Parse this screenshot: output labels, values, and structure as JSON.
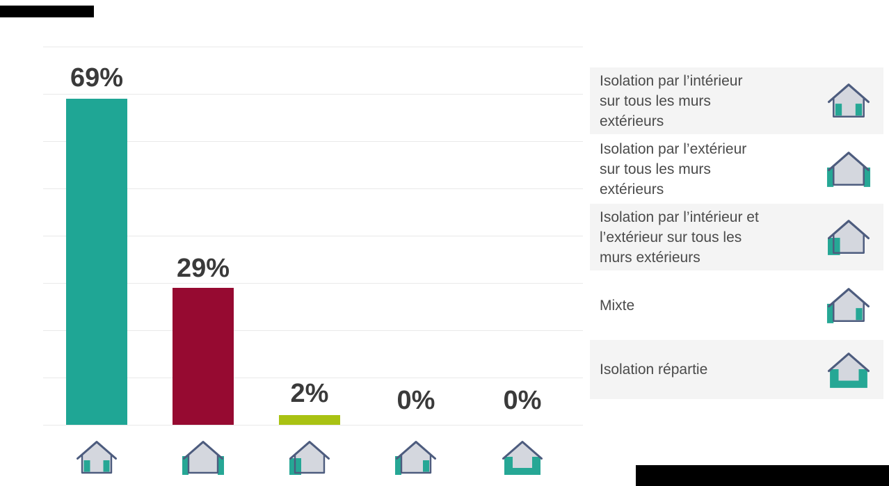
{
  "chart_data": {
    "type": "bar",
    "title": "",
    "categories": [
      "Isolation par l’intérieur sur tous les murs extérieurs",
      "Isolation par l’extérieur sur tous les murs extérieurs",
      "Isolation par l’intérieur et l’extérieur sur tous les murs extérieurs",
      "Mixte",
      "Isolation répartie"
    ],
    "values": [
      69,
      29,
      2,
      0,
      0
    ],
    "value_labels": [
      "69%",
      "29%",
      "2%",
      "0%",
      "0%"
    ],
    "bar_colors": [
      "#1fa695",
      "#960a31",
      "#a9c213",
      null,
      null
    ],
    "xlabel": "",
    "ylabel": "",
    "ylim": [
      0,
      80
    ],
    "gridline_step": 10,
    "grid": "horizontal",
    "legend_position": "right",
    "category_icons": [
      "house-interior-insulation-icon",
      "house-exterior-insulation-icon",
      "house-interior-exterior-insulation-icon",
      "house-mixte-insulation-icon",
      "house-repartie-insulation-icon"
    ]
  },
  "legend": {
    "items": [
      {
        "lines": "Isolation par l’intérieur\nsur tous les murs\nextérieurs",
        "icon": "house-interior-insulation-icon",
        "variant": "interior",
        "bg": "#f4f4f4"
      },
      {
        "lines": "Isolation par l’extérieur\nsur tous les murs\nextérieurs",
        "icon": "house-exterior-insulation-icon",
        "variant": "exterior",
        "bg": "#ffffff"
      },
      {
        "lines": "Isolation par l’intérieur et\nl’extérieur sur tous les\nmurs extérieurs",
        "icon": "house-interior-exterior-insulation-icon",
        "variant": "interior-exterior",
        "bg": "#f4f4f4"
      },
      {
        "lines": "Mixte",
        "icon": "house-mixte-insulation-icon",
        "variant": "mixte",
        "bg": "#ffffff"
      },
      {
        "lines": "Isolation répartie",
        "icon": "house-repartie-insulation-icon",
        "variant": "repartie",
        "bg": "#f4f4f4"
      }
    ]
  },
  "colors": {
    "bar_teal": "#1fa695",
    "bar_crimson": "#960a31",
    "bar_green": "#a9c213",
    "gridline": "#e9e9e9",
    "label_text": "#3a3a3a",
    "legend_text": "#4a4a4a",
    "legend_row_gray": "#f4f4f4",
    "house_fill": "#d4d7de",
    "house_outline": "#4d5c7e",
    "house_teal": "#26a795",
    "redaction": "#000000"
  }
}
